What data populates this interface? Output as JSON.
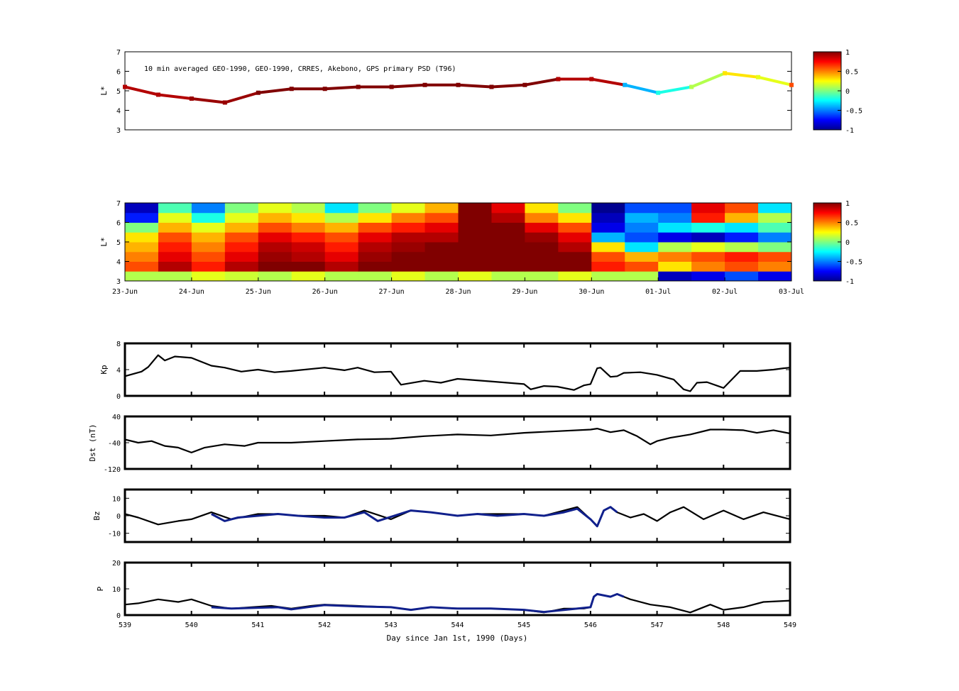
{
  "title": "10 min averaged GEO-1990, GEO-1990, CRRES, Akebono, GPS  primary PSD (T96)",
  "xlabel": "Day since Jan 1st, 1990 (Days)",
  "date_ticks": [
    "23-Jun",
    "24-Jun",
    "25-Jun",
    "26-Jun",
    "27-Jun",
    "28-Jun",
    "29-Jun",
    "30-Jun",
    "01-Jul",
    "02-Jul",
    "03-Jul"
  ],
  "day_ticks": [
    "539",
    "540",
    "541",
    "542",
    "543",
    "544",
    "545",
    "546",
    "547",
    "548",
    "549"
  ],
  "colorbar_ticks": [
    "1",
    "0.5",
    "0",
    "-0.5",
    "-1"
  ],
  "colors": {
    "line": "#000000",
    "highlight": "#10208c",
    "high": "#800000",
    "low": "#00008f"
  },
  "chart_data": [
    {
      "type": "scatter",
      "panel": "orbit-psd",
      "ylabel": "L*",
      "ytick_labels": [
        "7",
        "6",
        "5",
        "4",
        "3"
      ],
      "ylim": [
        3,
        7
      ],
      "xlim": [
        539,
        549
      ],
      "colorbar_range": [
        -1,
        1
      ],
      "series": [
        {
          "x": [
            539.0,
            539.5,
            540.0,
            540.5,
            541.0,
            541.5,
            542.0,
            542.5,
            543.0,
            543.5,
            544.0,
            544.5,
            545.0,
            545.5,
            546.0,
            546.5,
            547.0,
            547.5,
            548.0,
            548.5,
            549.0
          ],
          "y": [
            5.2,
            4.8,
            4.6,
            4.4,
            4.9,
            5.1,
            5.1,
            5.2,
            5.2,
            5.3,
            5.3,
            5.2,
            5.3,
            5.6,
            5.6,
            5.3,
            4.9,
            5.2,
            5.9,
            5.7,
            5.3
          ],
          "color_values": [
            0.9,
            0.9,
            0.95,
            0.95,
            1.0,
            1.0,
            1.0,
            1.0,
            1.0,
            1.0,
            1.0,
            1.0,
            1.0,
            0.9,
            0.9,
            -0.4,
            -0.2,
            0.1,
            0.3,
            0.2,
            0.6
          ]
        }
      ]
    },
    {
      "type": "heatmap",
      "panel": "psd-map",
      "ylabel": "L*",
      "ytick_labels": [
        "7",
        "6",
        "5",
        "4",
        "3"
      ],
      "ylim": [
        3,
        7
      ],
      "xlim": [
        539,
        549
      ],
      "colorbar_range": [
        -1,
        1
      ],
      "x_centers": [
        539.25,
        539.75,
        540.25,
        540.75,
        541.25,
        541.75,
        542.25,
        542.75,
        543.25,
        543.75,
        544.25,
        544.75,
        545.25,
        545.75,
        546.25,
        546.75,
        547.25,
        547.75,
        548.25,
        548.75
      ],
      "y_centers": [
        3.25,
        3.75,
        4.25,
        4.75,
        5.25,
        5.75,
        6.25,
        6.75
      ],
      "z": [
        [
          0.1,
          0.1,
          0.2,
          0.15,
          0.1,
          0.2,
          0.1,
          0.1,
          0.2,
          0.1,
          0.2,
          0.1,
          0.1,
          0.2,
          0.1,
          0.1,
          -0.9,
          -0.8,
          -0.6,
          -0.8
        ],
        [
          0.6,
          0.9,
          0.7,
          0.9,
          1.0,
          1.0,
          0.9,
          1.0,
          1.0,
          1.0,
          1.0,
          1.0,
          1.0,
          1.0,
          0.7,
          0.6,
          0.3,
          0.5,
          0.6,
          0.5
        ],
        [
          0.5,
          0.8,
          0.6,
          0.8,
          0.95,
          0.9,
          0.8,
          0.95,
          1.0,
          1.0,
          1.0,
          1.0,
          1.0,
          1.0,
          0.6,
          0.4,
          0.5,
          0.6,
          0.7,
          0.6
        ],
        [
          0.4,
          0.7,
          0.5,
          0.7,
          0.9,
          0.85,
          0.7,
          0.9,
          0.95,
          1.0,
          1.0,
          1.0,
          1.0,
          0.9,
          0.3,
          -0.3,
          0.1,
          0.2,
          0.1,
          0.0
        ],
        [
          0.3,
          0.6,
          0.4,
          0.6,
          0.8,
          0.7,
          0.6,
          0.8,
          0.9,
          0.9,
          1.0,
          1.0,
          0.95,
          0.8,
          -0.4,
          -0.6,
          -0.8,
          -0.9,
          -0.7,
          -0.5
        ],
        [
          0.0,
          0.4,
          0.2,
          0.4,
          0.6,
          0.5,
          0.4,
          0.6,
          0.7,
          0.8,
          1.0,
          1.0,
          0.8,
          0.6,
          -0.8,
          -0.5,
          -0.3,
          -0.2,
          -0.3,
          -0.1
        ],
        [
          -0.7,
          0.2,
          -0.2,
          0.2,
          0.4,
          0.3,
          0.1,
          0.3,
          0.5,
          0.6,
          1.0,
          0.9,
          0.5,
          0.3,
          -0.9,
          -0.4,
          -0.5,
          0.7,
          0.4,
          0.1
        ],
        [
          -0.9,
          -0.1,
          -0.5,
          0.0,
          0.2,
          0.1,
          -0.3,
          0.0,
          0.2,
          0.4,
          1.0,
          0.8,
          0.3,
          0.0,
          -1.0,
          -0.6,
          -0.6,
          0.8,
          0.6,
          -0.3
        ]
      ]
    },
    {
      "type": "line",
      "panel": "kp",
      "ylabel": "Kp",
      "ytick_labels": [
        "8",
        "4",
        "0"
      ],
      "ylim": [
        0,
        8
      ],
      "xlim": [
        539,
        549
      ],
      "series": [
        {
          "x": [
            539.0,
            539.25,
            539.35,
            539.5,
            539.6,
            539.75,
            540.0,
            540.3,
            540.5,
            540.75,
            541.0,
            541.25,
            541.5,
            542.0,
            542.3,
            542.5,
            542.75,
            543.0,
            543.15,
            543.5,
            543.75,
            544.0,
            544.5,
            545.0,
            545.1,
            545.3,
            545.5,
            545.75,
            545.9,
            546.0,
            546.1,
            546.15,
            546.3,
            546.4,
            546.5,
            546.75,
            547.0,
            547.25,
            547.4,
            547.5,
            547.6,
            547.75,
            548.0,
            548.25,
            548.5,
            548.75,
            548.9,
            549.0
          ],
          "y": [
            3.0,
            3.7,
            4.4,
            6.2,
            5.4,
            6.0,
            5.8,
            4.6,
            4.3,
            3.7,
            4.0,
            3.6,
            3.8,
            4.3,
            3.9,
            4.3,
            3.6,
            3.7,
            1.7,
            2.3,
            2.0,
            2.6,
            2.2,
            1.8,
            1.0,
            1.5,
            1.4,
            0.9,
            1.6,
            1.8,
            4.2,
            4.3,
            2.9,
            3.0,
            3.5,
            3.6,
            3.2,
            2.5,
            1.0,
            0.7,
            2.0,
            2.1,
            1.2,
            3.8,
            3.8,
            4.0,
            4.2,
            4.3
          ]
        }
      ]
    },
    {
      "type": "line",
      "panel": "dst",
      "ylabel": "Dst (nT)",
      "ytick_labels": [
        "40",
        "-40",
        "-120"
      ],
      "ylim": [
        -120,
        40
      ],
      "xlim": [
        539,
        549
      ],
      "series": [
        {
          "x": [
            539.0,
            539.2,
            539.4,
            539.6,
            539.8,
            540.0,
            540.2,
            540.5,
            540.8,
            541.0,
            541.5,
            542.0,
            542.5,
            543.0,
            543.5,
            544.0,
            544.5,
            545.0,
            545.5,
            546.0,
            546.1,
            546.3,
            546.5,
            546.7,
            546.9,
            547.0,
            547.2,
            547.5,
            547.8,
            548.0,
            548.3,
            548.5,
            548.75,
            549.0
          ],
          "y": [
            -30,
            -40,
            -35,
            -50,
            -55,
            -70,
            -55,
            -45,
            -50,
            -40,
            -40,
            -35,
            -30,
            -28,
            -20,
            -15,
            -18,
            -10,
            -5,
            0,
            3,
            -8,
            -2,
            -20,
            -45,
            -35,
            -25,
            -15,
            0,
            0,
            -2,
            -10,
            -2,
            -12
          ]
        }
      ]
    },
    {
      "type": "line",
      "panel": "bz",
      "ylabel": "Bz",
      "ytick_labels": [
        "10",
        "0",
        "-10"
      ],
      "ylim": [
        -15,
        15
      ],
      "xlim": [
        539,
        549
      ],
      "series": [
        {
          "x": [
            539.0,
            539.2,
            539.5,
            539.8,
            540.0,
            540.3,
            540.6,
            541.0,
            541.3,
            541.6,
            542.0,
            542.3,
            542.6,
            543.0,
            543.3,
            543.6,
            544.0,
            544.3,
            544.6,
            545.0,
            545.3,
            545.6,
            545.8,
            546.0,
            546.1,
            546.2,
            546.3,
            546.4,
            546.6,
            546.8,
            547.0,
            547.2,
            547.4,
            547.7,
            548.0,
            548.3,
            548.6,
            549.0
          ],
          "y": [
            1,
            -1,
            -5,
            -3,
            -2,
            2,
            -2,
            1,
            1,
            0,
            0,
            -1,
            3,
            -2,
            3,
            2,
            0,
            1,
            1,
            1,
            0,
            3,
            5,
            -2,
            -6,
            3,
            5,
            2,
            -1,
            1,
            -3,
            2,
            5,
            -2,
            3,
            -2,
            2,
            -2
          ]
        },
        {
          "name": "highlight",
          "x": [
            540.3,
            540.5,
            540.7,
            541.3,
            541.6,
            542.0,
            542.3,
            542.6,
            542.8,
            543.3,
            543.6,
            544.0,
            544.3,
            544.6,
            545.0,
            545.3,
            545.6,
            545.8,
            546.0,
            546.1,
            546.2,
            546.3,
            546.4
          ],
          "y": [
            1,
            -3,
            -1,
            1,
            0,
            -1,
            -1,
            2,
            -3,
            3,
            2,
            0,
            1,
            0,
            1,
            0,
            2,
            4,
            -2,
            -6,
            3,
            5,
            2
          ]
        }
      ]
    },
    {
      "type": "line",
      "panel": "pressure",
      "ylabel": "P",
      "ytick_labels": [
        "20",
        "10",
        "0"
      ],
      "ylim": [
        0,
        20
      ],
      "xlim": [
        539,
        549
      ],
      "series": [
        {
          "x": [
            539.0,
            539.2,
            539.5,
            539.8,
            540.0,
            540.3,
            540.6,
            540.9,
            541.2,
            541.5,
            541.8,
            542.0,
            542.5,
            543.0,
            543.3,
            543.6,
            544.0,
            544.5,
            545.0,
            545.3,
            545.6,
            545.9,
            546.0,
            546.05,
            546.1,
            546.3,
            546.4,
            546.5,
            546.6,
            546.9,
            547.2,
            547.5,
            547.8,
            548.0,
            548.3,
            548.6,
            549.0
          ],
          "y": [
            4,
            4.5,
            6,
            5,
            6,
            3.5,
            2.5,
            3,
            3.5,
            2.5,
            3.5,
            4,
            3.5,
            3,
            2,
            3,
            2.5,
            2.5,
            2,
            1,
            2.5,
            2.5,
            3,
            7,
            8,
            7,
            8,
            7,
            6,
            4,
            3,
            1,
            4,
            2,
            3,
            5,
            5.5
          ]
        },
        {
          "name": "highlight",
          "x": [
            540.3,
            540.6,
            541.3,
            541.5,
            541.8,
            542.0,
            542.5,
            543.0,
            543.3,
            543.6,
            544.0,
            544.5,
            545.0,
            545.3,
            546.0,
            546.05,
            546.1,
            546.3,
            546.4,
            546.5
          ],
          "y": [
            3,
            2.5,
            3,
            2.2,
            3.2,
            3.8,
            3.3,
            3,
            2,
            3,
            2.5,
            2.5,
            2,
            1.2,
            3,
            7,
            8,
            7,
            8,
            7
          ]
        }
      ]
    }
  ]
}
